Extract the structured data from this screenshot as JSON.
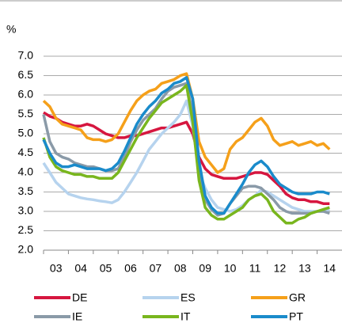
{
  "chart_data": {
    "type": "line",
    "ylabel": "%",
    "x": [
      3.0,
      3.25,
      3.5,
      3.75,
      4.0,
      4.25,
      4.5,
      4.75,
      5.0,
      5.25,
      5.5,
      5.75,
      6.0,
      6.25,
      6.5,
      6.75,
      7.0,
      7.25,
      7.5,
      7.75,
      8.0,
      8.25,
      8.5,
      8.75,
      9.0,
      9.25,
      9.5,
      9.75,
      10.0,
      10.25,
      10.5,
      10.75,
      11.0,
      11.25,
      11.5,
      11.75,
      12.0,
      12.25,
      12.5,
      12.75,
      13.0,
      13.25,
      13.5,
      13.75,
      14.0,
      14.25,
      14.5
    ],
    "series": [
      {
        "name": "DE",
        "color": "#d6163f",
        "values": [
          5.55,
          5.45,
          5.4,
          5.3,
          5.25,
          5.2,
          5.2,
          5.25,
          5.2,
          5.1,
          5.0,
          4.95,
          4.9,
          4.9,
          4.95,
          4.95,
          5.0,
          5.05,
          5.1,
          5.15,
          5.15,
          5.2,
          5.25,
          5.3,
          5.0,
          4.4,
          4.1,
          3.95,
          3.9,
          3.85,
          3.85,
          3.85,
          3.9,
          3.95,
          4.0,
          4.0,
          3.95,
          3.8,
          3.65,
          3.45,
          3.35,
          3.3,
          3.3,
          3.25,
          3.25,
          3.2,
          3.2
        ]
      },
      {
        "name": "ES",
        "color": "#b6d3ee",
        "values": [
          4.25,
          4.0,
          3.75,
          3.6,
          3.45,
          3.4,
          3.35,
          3.32,
          3.3,
          3.27,
          3.25,
          3.22,
          3.3,
          3.5,
          3.75,
          4.0,
          4.3,
          4.6,
          4.8,
          5.0,
          5.15,
          5.3,
          5.5,
          5.85,
          5.2,
          4.0,
          3.6,
          3.3,
          3.1,
          3.05,
          3.0,
          3.05,
          3.15,
          3.3,
          3.4,
          3.55,
          3.5,
          3.4,
          3.3,
          3.2,
          3.1,
          3.05,
          3.0,
          3.0,
          3.0,
          3.0,
          3.05
        ]
      },
      {
        "name": "GR",
        "color": "#f5a01a",
        "values": [
          5.85,
          5.7,
          5.4,
          5.25,
          5.2,
          5.15,
          5.1,
          4.9,
          4.85,
          4.85,
          4.8,
          4.85,
          5.0,
          5.3,
          5.6,
          5.85,
          6.0,
          6.1,
          6.15,
          6.3,
          6.35,
          6.4,
          6.5,
          6.55,
          5.9,
          4.8,
          4.4,
          4.2,
          4.0,
          4.1,
          4.6,
          4.8,
          4.9,
          5.1,
          5.3,
          5.4,
          5.2,
          4.85,
          4.7,
          4.75,
          4.8,
          4.7,
          4.75,
          4.8,
          4.7,
          4.75,
          4.6
        ]
      },
      {
        "name": "IE",
        "color": "#8a9aa8",
        "values": [
          5.5,
          4.8,
          4.5,
          4.4,
          4.35,
          4.25,
          4.2,
          4.15,
          4.15,
          4.1,
          4.05,
          4.05,
          4.1,
          4.4,
          4.8,
          5.1,
          5.35,
          5.5,
          5.65,
          5.9,
          6.1,
          6.2,
          6.25,
          6.3,
          5.5,
          4.0,
          3.3,
          3.05,
          2.9,
          2.95,
          3.2,
          3.4,
          3.6,
          3.65,
          3.65,
          3.6,
          3.45,
          3.3,
          3.1,
          3.0,
          2.95,
          2.95,
          2.95,
          2.95,
          3.0,
          3.0,
          2.95
        ]
      },
      {
        "name": "IT",
        "color": "#79b61e",
        "values": [
          4.9,
          4.4,
          4.15,
          4.05,
          4.0,
          3.95,
          3.95,
          3.9,
          3.9,
          3.85,
          3.85,
          3.85,
          4.0,
          4.3,
          4.6,
          4.9,
          5.15,
          5.4,
          5.6,
          5.8,
          5.9,
          6.0,
          6.1,
          6.25,
          5.3,
          3.8,
          3.1,
          2.9,
          2.8,
          2.8,
          2.9,
          3.0,
          3.1,
          3.3,
          3.4,
          3.45,
          3.3,
          3.0,
          2.85,
          2.7,
          2.7,
          2.8,
          2.85,
          2.95,
          3.0,
          3.05,
          3.1
        ]
      },
      {
        "name": "PT",
        "color": "#1a8bcb",
        "values": [
          4.85,
          4.5,
          4.25,
          4.15,
          4.15,
          4.2,
          4.15,
          4.1,
          4.1,
          4.1,
          4.05,
          4.1,
          4.25,
          4.55,
          4.9,
          5.25,
          5.5,
          5.7,
          5.85,
          6.05,
          6.15,
          6.3,
          6.35,
          6.45,
          5.9,
          4.3,
          3.4,
          3.1,
          2.95,
          2.95,
          3.2,
          3.45,
          3.7,
          4.0,
          4.2,
          4.3,
          4.15,
          3.9,
          3.7,
          3.6,
          3.5,
          3.45,
          3.45,
          3.45,
          3.5,
          3.5,
          3.45
        ]
      }
    ],
    "xlim": [
      3,
      15
    ],
    "xticks": [
      {
        "value": 3,
        "label": "03"
      },
      {
        "value": 4,
        "label": "04"
      },
      {
        "value": 5,
        "label": "05"
      },
      {
        "value": 6,
        "label": "06"
      },
      {
        "value": 7,
        "label": "07"
      },
      {
        "value": 8,
        "label": "08"
      },
      {
        "value": 9,
        "label": "09"
      },
      {
        "value": 10,
        "label": "10"
      },
      {
        "value": 11,
        "label": "11"
      },
      {
        "value": 12,
        "label": "12"
      },
      {
        "value": 13,
        "label": "13"
      },
      {
        "value": 14,
        "label": "14"
      }
    ],
    "ylim": [
      2,
      7
    ],
    "yticks": [
      {
        "value": 2,
        "label": "2.0"
      },
      2.5,
      {
        "value": 3,
        "label": "3.0"
      },
      3.5,
      {
        "value": 4,
        "label": "4.0"
      },
      4.5,
      {
        "value": 5,
        "label": "5.0"
      },
      5.5,
      {
        "value": 6,
        "label": "6.0"
      },
      6.5,
      {
        "value": 7,
        "label": "7.0"
      }
    ],
    "grid": true
  }
}
